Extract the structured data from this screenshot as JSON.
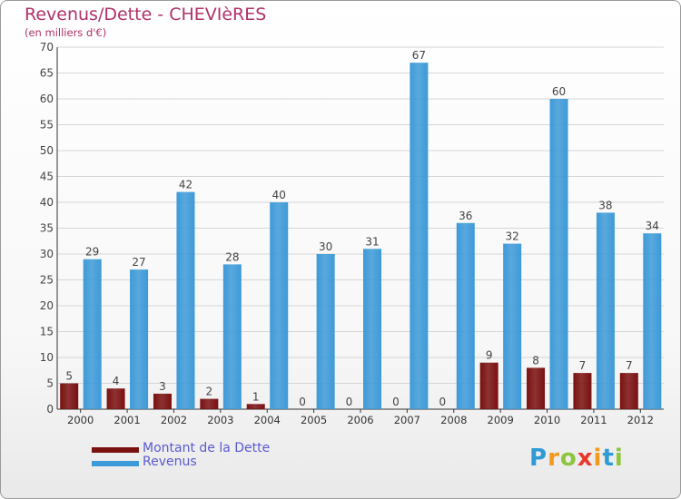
{
  "title": "Revenus/Dette - CHEVIèRES",
  "subtitle": "(en milliers d'€)",
  "chart_data": {
    "type": "bar",
    "categories": [
      "2000",
      "2001",
      "2002",
      "2003",
      "2004",
      "2005",
      "2006",
      "2007",
      "2008",
      "2009",
      "2010",
      "2011",
      "2012"
    ],
    "series": [
      {
        "name": "Montant de la Dette",
        "color": "#7a1010",
        "values": [
          5,
          4,
          3,
          2,
          1,
          0,
          0,
          0,
          0,
          9,
          8,
          7,
          7
        ]
      },
      {
        "name": "Revenus",
        "color": "#3d9ad8",
        "values": [
          29,
          27,
          42,
          28,
          40,
          30,
          31,
          67,
          36,
          32,
          60,
          38,
          34
        ]
      }
    ],
    "ylim": [
      0,
      70
    ],
    "yticks": [
      0,
      5,
      10,
      15,
      20,
      25,
      30,
      35,
      40,
      45,
      50,
      55,
      60,
      65,
      70
    ],
    "grid": true,
    "legend_position": "bottom-left"
  },
  "legend": {
    "items": [
      {
        "label": "Montant de la Dette",
        "color": "#7a1010"
      },
      {
        "label": "Revenus",
        "color": "#3d9ad8"
      }
    ]
  },
  "logo": {
    "letters": [
      "P",
      "r",
      "o",
      "x",
      "i",
      "t",
      "i"
    ],
    "colors": [
      "#2e9ad6",
      "#f39a1e",
      "#8cc63f",
      "#e9372b",
      "#f39a1e",
      "#2e9ad6",
      "#8cc63f"
    ]
  }
}
